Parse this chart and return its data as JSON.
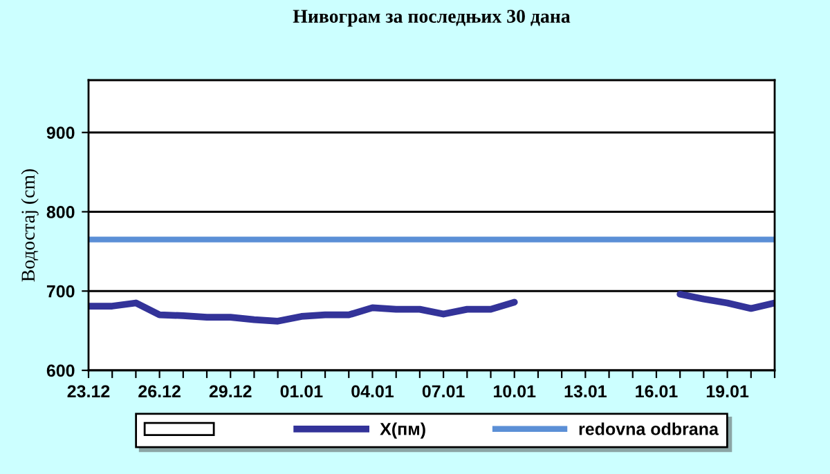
{
  "chart_data": {
    "type": "line",
    "title": "Нивограм за последњих 30 дана",
    "ylabel": "Водостај (cm)",
    "categories": [
      "23.12",
      null,
      null,
      "26.12",
      null,
      null,
      "29.12",
      null,
      null,
      "01.01",
      null,
      null,
      "04.01",
      null,
      null,
      "07.01",
      null,
      null,
      "10.01",
      null,
      null,
      "13.01",
      null,
      null,
      "16.01",
      null,
      null,
      "19.01",
      null,
      null
    ],
    "series": [
      {
        "type": "bar",
        "color": "#ffffff",
        "values": [
          null,
          null,
          null,
          null,
          null,
          null,
          null,
          null,
          null,
          null,
          null,
          null,
          null,
          null,
          null,
          null,
          null,
          null,
          null,
          null,
          null,
          null,
          null,
          null,
          null,
          null,
          null,
          null,
          null,
          null
        ]
      },
      {
        "name": "X(пм)",
        "color": "#333399",
        "values": [
          681,
          681,
          685,
          670,
          669,
          667,
          667,
          664,
          662,
          668,
          670,
          670,
          679,
          677,
          677,
          671,
          677,
          677,
          686,
          null,
          null,
          null,
          null,
          null,
          null,
          696,
          690,
          685,
          678,
          685
        ]
      }
    ],
    "ref_lines": [
      {
        "axis": "y",
        "value": 765,
        "label": "redovna odbrana",
        "color": "#5b8fd6"
      }
    ],
    "ylim": [
      600,
      966
    ],
    "yticks": [
      600,
      700,
      800,
      900
    ],
    "grid": "y",
    "legend": "bottom"
  }
}
